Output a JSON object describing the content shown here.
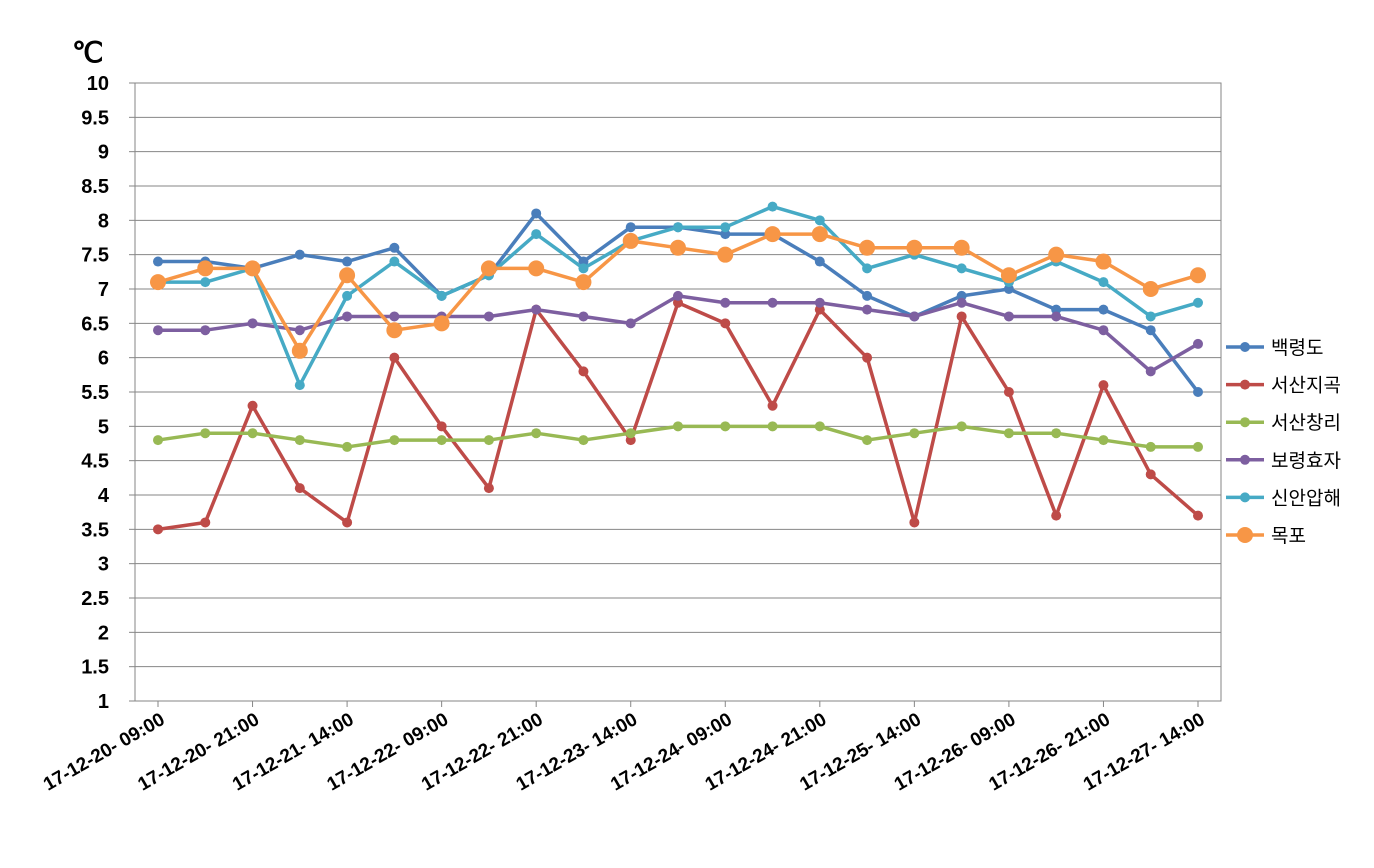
{
  "chart_data": {
    "type": "line",
    "unit_label": "℃",
    "ylim": [
      1,
      10
    ],
    "ytick_step": 0.5,
    "grid": true,
    "legend_position": "right",
    "x_labels": [
      "17-12-20- 09:00",
      "17-12-20- 21:00",
      "17-12-21- 14:00",
      "17-12-22- 09:00",
      "17-12-22- 21:00",
      "17-12-23- 14:00",
      "17-12-24- 09:00",
      "17-12-24- 21:00",
      "17-12-25- 14:00",
      "17-12-26- 09:00",
      "17-12-26- 21:00",
      "17-12-27- 14:00"
    ],
    "x_label_every": 2,
    "series": [
      {
        "name": "백령도",
        "color": "#4a7ebb",
        "values": [
          7.4,
          7.4,
          7.3,
          7.5,
          7.4,
          7.6,
          6.9,
          7.2,
          8.1,
          7.4,
          7.9,
          7.9,
          7.8,
          7.8,
          7.4,
          6.9,
          6.6,
          6.9,
          7.0,
          6.7,
          6.7,
          6.4,
          5.5
        ]
      },
      {
        "name": "서산지곡",
        "color": "#be4b48",
        "values": [
          3.5,
          3.6,
          5.3,
          4.1,
          3.6,
          6.0,
          5.0,
          4.1,
          6.7,
          5.8,
          4.8,
          6.8,
          6.5,
          5.3,
          6.7,
          6.0,
          3.6,
          6.6,
          5.5,
          3.7,
          5.6,
          4.3,
          3.7
        ]
      },
      {
        "name": "서산창리",
        "color": "#98b954",
        "values": [
          4.8,
          4.9,
          4.9,
          4.8,
          4.7,
          4.8,
          4.8,
          4.8,
          4.9,
          4.8,
          4.9,
          5.0,
          5.0,
          5.0,
          5.0,
          4.8,
          4.9,
          5.0,
          4.9,
          4.9,
          4.8,
          4.7,
          4.7
        ]
      },
      {
        "name": "보령효자",
        "color": "#7d5fa0",
        "values": [
          6.4,
          6.4,
          6.5,
          6.4,
          6.6,
          6.6,
          6.6,
          6.6,
          6.7,
          6.6,
          6.5,
          6.9,
          6.8,
          6.8,
          6.8,
          6.7,
          6.6,
          6.8,
          6.6,
          6.6,
          6.4,
          5.8,
          6.2
        ]
      },
      {
        "name": "신안압해",
        "color": "#46aac5",
        "values": [
          7.1,
          7.1,
          7.3,
          5.6,
          6.9,
          7.4,
          6.9,
          7.2,
          7.8,
          7.3,
          7.7,
          7.9,
          7.9,
          8.2,
          8.0,
          7.3,
          7.5,
          7.3,
          7.1,
          7.4,
          7.1,
          6.6,
          6.8
        ]
      },
      {
        "name": "목포",
        "color": "#f79646",
        "values": [
          7.1,
          7.3,
          7.3,
          6.1,
          7.2,
          6.4,
          6.5,
          7.3,
          7.3,
          7.1,
          7.7,
          7.6,
          7.5,
          7.8,
          7.8,
          7.6,
          7.6,
          7.6,
          7.2,
          7.5,
          7.4,
          7.0,
          7.2
        ]
      }
    ]
  }
}
